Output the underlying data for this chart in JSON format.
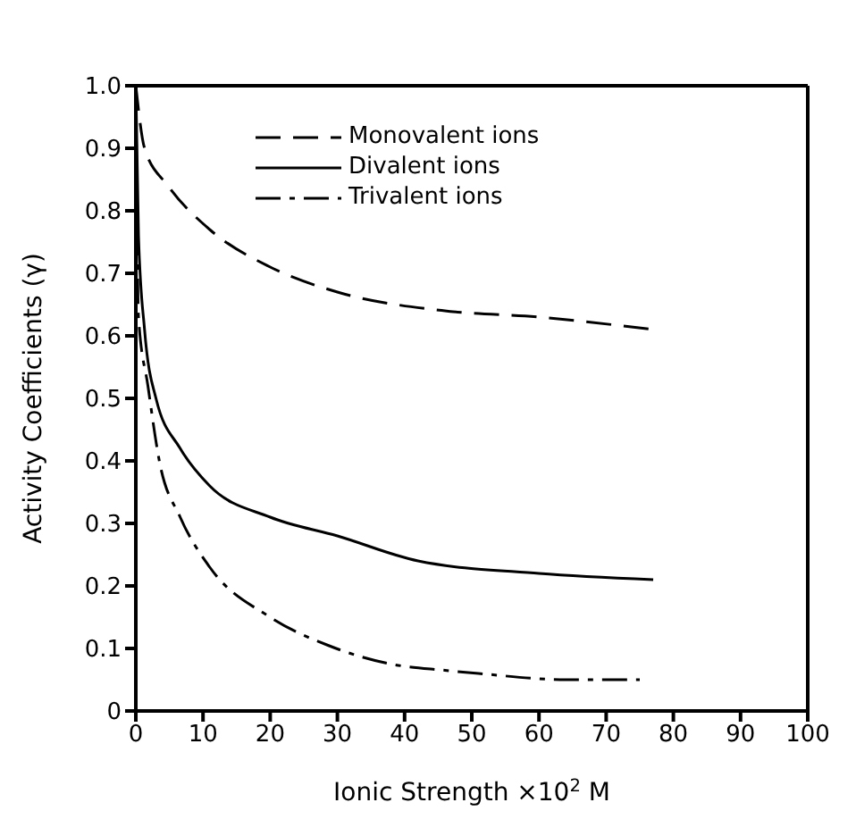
{
  "chart_data": {
    "type": "line",
    "xlabel": "Ionic Strength ×10$^{2}$ M",
    "ylabel": "Activity Coefficients (γ)",
    "xlim": [
      0,
      100
    ],
    "xticks": [
      0,
      10,
      20,
      30,
      40,
      50,
      60,
      70,
      80,
      90,
      100
    ],
    "ylim": [
      0,
      1.0
    ],
    "yticks": [
      0,
      0.1,
      0.2,
      0.3,
      0.4,
      0.5,
      0.6,
      0.7,
      0.8,
      0.9,
      {
        "value": 1.0,
        "label": "1.0"
      }
    ],
    "legend": "top",
    "marker": "none",
    "series": [
      {
        "name": "Monovalent ions",
        "color": "#000000",
        "line_style": "dashed",
        "x": [
          0,
          1.3,
          4.8,
          11,
          20,
          30,
          46,
          60,
          77
        ],
        "values": [
          1.0,
          0.9,
          0.84,
          0.77,
          0.71,
          0.67,
          0.64,
          0.63,
          0.61
        ]
      },
      {
        "name": "Divalent ions",
        "color": "#000000",
        "line_style": "solid",
        "x": [
          0,
          0.4,
          1.3,
          3,
          6.6,
          11,
          20,
          30,
          42,
          60,
          77
        ],
        "values": [
          1.0,
          0.76,
          0.61,
          0.5,
          0.42,
          0.36,
          0.31,
          0.28,
          0.24,
          0.22,
          0.21
        ]
      },
      {
        "name": "Trivalent ions",
        "color": "#000000",
        "line_style": "dashdot",
        "x": [
          0,
          0.4,
          1.8,
          3.5,
          6.6,
          11,
          20,
          28.6,
          38,
          46,
          51,
          64,
          75
        ],
        "values": [
          1.0,
          0.63,
          0.52,
          0.4,
          0.31,
          0.23,
          0.15,
          0.105,
          0.075,
          0.065,
          0.06,
          0.05,
          0.05
        ]
      }
    ]
  }
}
